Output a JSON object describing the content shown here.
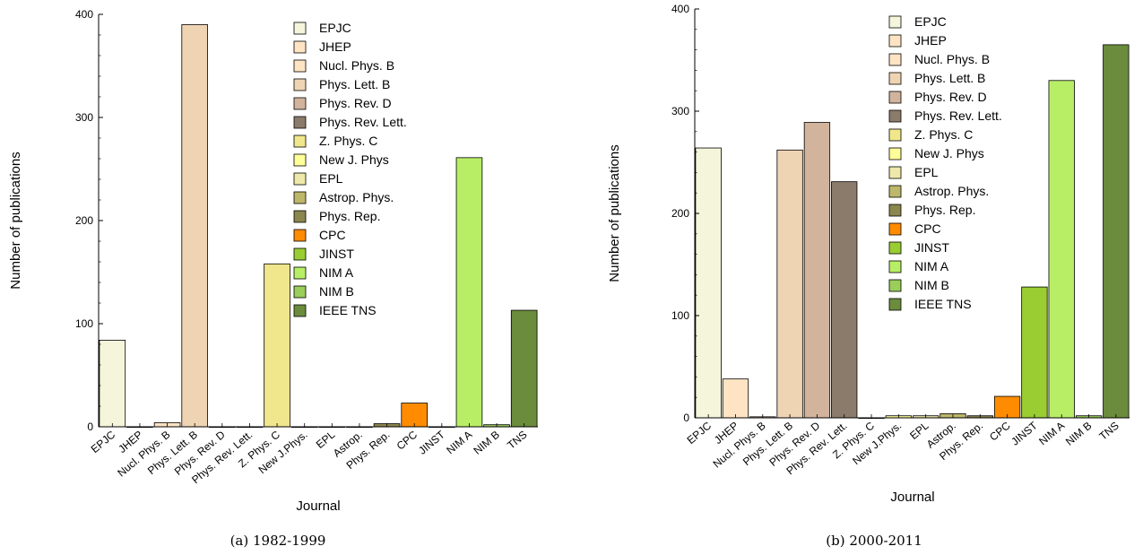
{
  "chart_data": [
    {
      "type": "bar",
      "caption": "(a) 1982-1999",
      "xlabel": "Journal",
      "ylabel": "Number of publications",
      "ylim": [
        0,
        400
      ],
      "yticks": [
        0,
        100,
        200,
        300,
        400
      ],
      "categories": [
        "EPJC",
        "JHEP",
        "Nucl. Phys. B",
        "Phys. Lett. B",
        "Phys. Rev. D",
        "Phys. Rev. Lett.",
        "Z. Phys. C",
        "New J.Phys.",
        "EPL",
        "Astrop.",
        "Phys. Rep.",
        "CPC",
        "JINST",
        "NIM A",
        "NIM B",
        "TNS"
      ],
      "values": [
        84,
        0,
        4,
        390,
        0,
        0,
        158,
        0,
        0,
        0,
        3,
        23,
        0,
        261,
        2,
        113
      ],
      "colors": [
        "#f5f5dc",
        "#ffe4c4",
        "#ffe4c4",
        "#efd4b4",
        "#d2b49c",
        "#8b7b6b",
        "#f0e68c",
        "#ffff99",
        "#eee8aa",
        "#bdb76b",
        "#8b864e",
        "#ff8c00",
        "#9acd32",
        "#b8ee66",
        "#9acd5a",
        "#6b8b3d"
      ],
      "legend": [
        "EPJC",
        "JHEP",
        "Nucl. Phys. B",
        "Phys. Lett. B",
        "Phys. Rev. D",
        "Phys. Rev. Lett.",
        "Z. Phys. C",
        "New J. Phys",
        "EPL",
        "Astrop. Phys.",
        "Phys. Rep.",
        "CPC",
        "JINST",
        "NIM A",
        "NIM B",
        "IEEE TNS"
      ],
      "legend_position": "top-right"
    },
    {
      "type": "bar",
      "caption": "(b) 2000-2011",
      "xlabel": "Journal",
      "ylabel": "Number of publications",
      "ylim": [
        0,
        400
      ],
      "yticks": [
        0,
        100,
        200,
        300,
        400
      ],
      "categories": [
        "EPJC",
        "JHEP",
        "Nucl. Phys. B",
        "Phys. Lett. B",
        "Phys. Rev. D",
        "Phys. Rev. Lett.",
        "Z. Phys. C",
        "New J.Phys.",
        "EPL",
        "Astrop.",
        "Phys. Rep.",
        "CPC",
        "JINST",
        "NIM A",
        "NIM B",
        "TNS"
      ],
      "values": [
        264,
        38,
        1,
        262,
        289,
        231,
        0,
        2,
        2,
        4,
        2,
        21,
        128,
        330,
        2,
        365
      ],
      "colors": [
        "#f5f5dc",
        "#ffe4c4",
        "#ffe4c4",
        "#efd4b4",
        "#d2b49c",
        "#8b7b6b",
        "#f0e68c",
        "#ffff99",
        "#eee8aa",
        "#bdb76b",
        "#8b864e",
        "#ff8c00",
        "#9acd32",
        "#b8ee66",
        "#9acd5a",
        "#6b8b3d"
      ],
      "legend": [
        "EPJC",
        "JHEP",
        "Nucl. Phys. B",
        "Phys. Lett. B",
        "Phys. Rev. D",
        "Phys. Rev. Lett.",
        "Z. Phys. C",
        "New J. Phys",
        "EPL",
        "Astrop. Phys.",
        "Phys. Rep.",
        "CPC",
        "JINST",
        "NIM A",
        "NIM B",
        "IEEE TNS"
      ],
      "legend_position": "top-right"
    }
  ]
}
